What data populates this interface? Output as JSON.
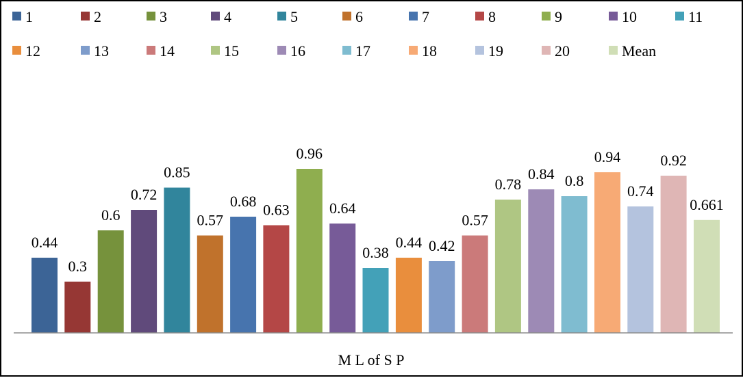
{
  "chart_data": {
    "type": "bar",
    "title": "",
    "xlabel": "M L of S P",
    "ylabel": "",
    "ylim": [
      0,
      1.02
    ],
    "grid": false,
    "legend_position": "top",
    "categories": [
      "M L of S P"
    ],
    "series": [
      {
        "name": "1",
        "values": [
          0.44
        ],
        "label": "0.44",
        "color": "#3C6496"
      },
      {
        "name": "2",
        "values": [
          0.3
        ],
        "label": "0.3",
        "color": "#963734"
      },
      {
        "name": "3",
        "values": [
          0.6
        ],
        "label": "0.6",
        "color": "#76923C"
      },
      {
        "name": "4",
        "values": [
          0.72
        ],
        "label": "0.72",
        "color": "#604A7B"
      },
      {
        "name": "5",
        "values": [
          0.85
        ],
        "label": "0.85",
        "color": "#31859C"
      },
      {
        "name": "6",
        "values": [
          0.57
        ],
        "label": "0.57",
        "color": "#C0722C"
      },
      {
        "name": "7",
        "values": [
          0.68
        ],
        "label": "0.68",
        "color": "#4774AE"
      },
      {
        "name": "8",
        "values": [
          0.63
        ],
        "label": "0.63",
        "color": "#B44746"
      },
      {
        "name": "9",
        "values": [
          0.96
        ],
        "label": "0.96",
        "color": "#8FAE4F"
      },
      {
        "name": "10",
        "values": [
          0.64
        ],
        "label": "0.64",
        "color": "#775B98"
      },
      {
        "name": "11",
        "values": [
          0.38
        ],
        "label": "0.38",
        "color": "#43A1B8"
      },
      {
        "name": "12",
        "values": [
          0.44
        ],
        "label": "0.44",
        "color": "#E98E3D"
      },
      {
        "name": "13",
        "values": [
          0.42
        ],
        "label": "0.42",
        "color": "#7E9CCB"
      },
      {
        "name": "14",
        "values": [
          0.57
        ],
        "label": "0.57",
        "color": "#CB7A7A"
      },
      {
        "name": "15",
        "values": [
          0.78
        ],
        "label": "0.78",
        "color": "#AFC683"
      },
      {
        "name": "16",
        "values": [
          0.84
        ],
        "label": "0.84",
        "color": "#9D8AB5"
      },
      {
        "name": "17",
        "values": [
          0.8
        ],
        "label": "0.8",
        "color": "#7FBCD0"
      },
      {
        "name": "18",
        "values": [
          0.94
        ],
        "label": "0.94",
        "color": "#F7AA75"
      },
      {
        "name": "19",
        "values": [
          0.74
        ],
        "label": "0.74",
        "color": "#B4C3DE"
      },
      {
        "name": "20",
        "values": [
          0.92
        ],
        "label": "0.92",
        "color": "#DFB6B5"
      },
      {
        "name": "Mean",
        "values": [
          0.661
        ],
        "label": "0.661",
        "color": "#D0DEB6"
      }
    ]
  }
}
